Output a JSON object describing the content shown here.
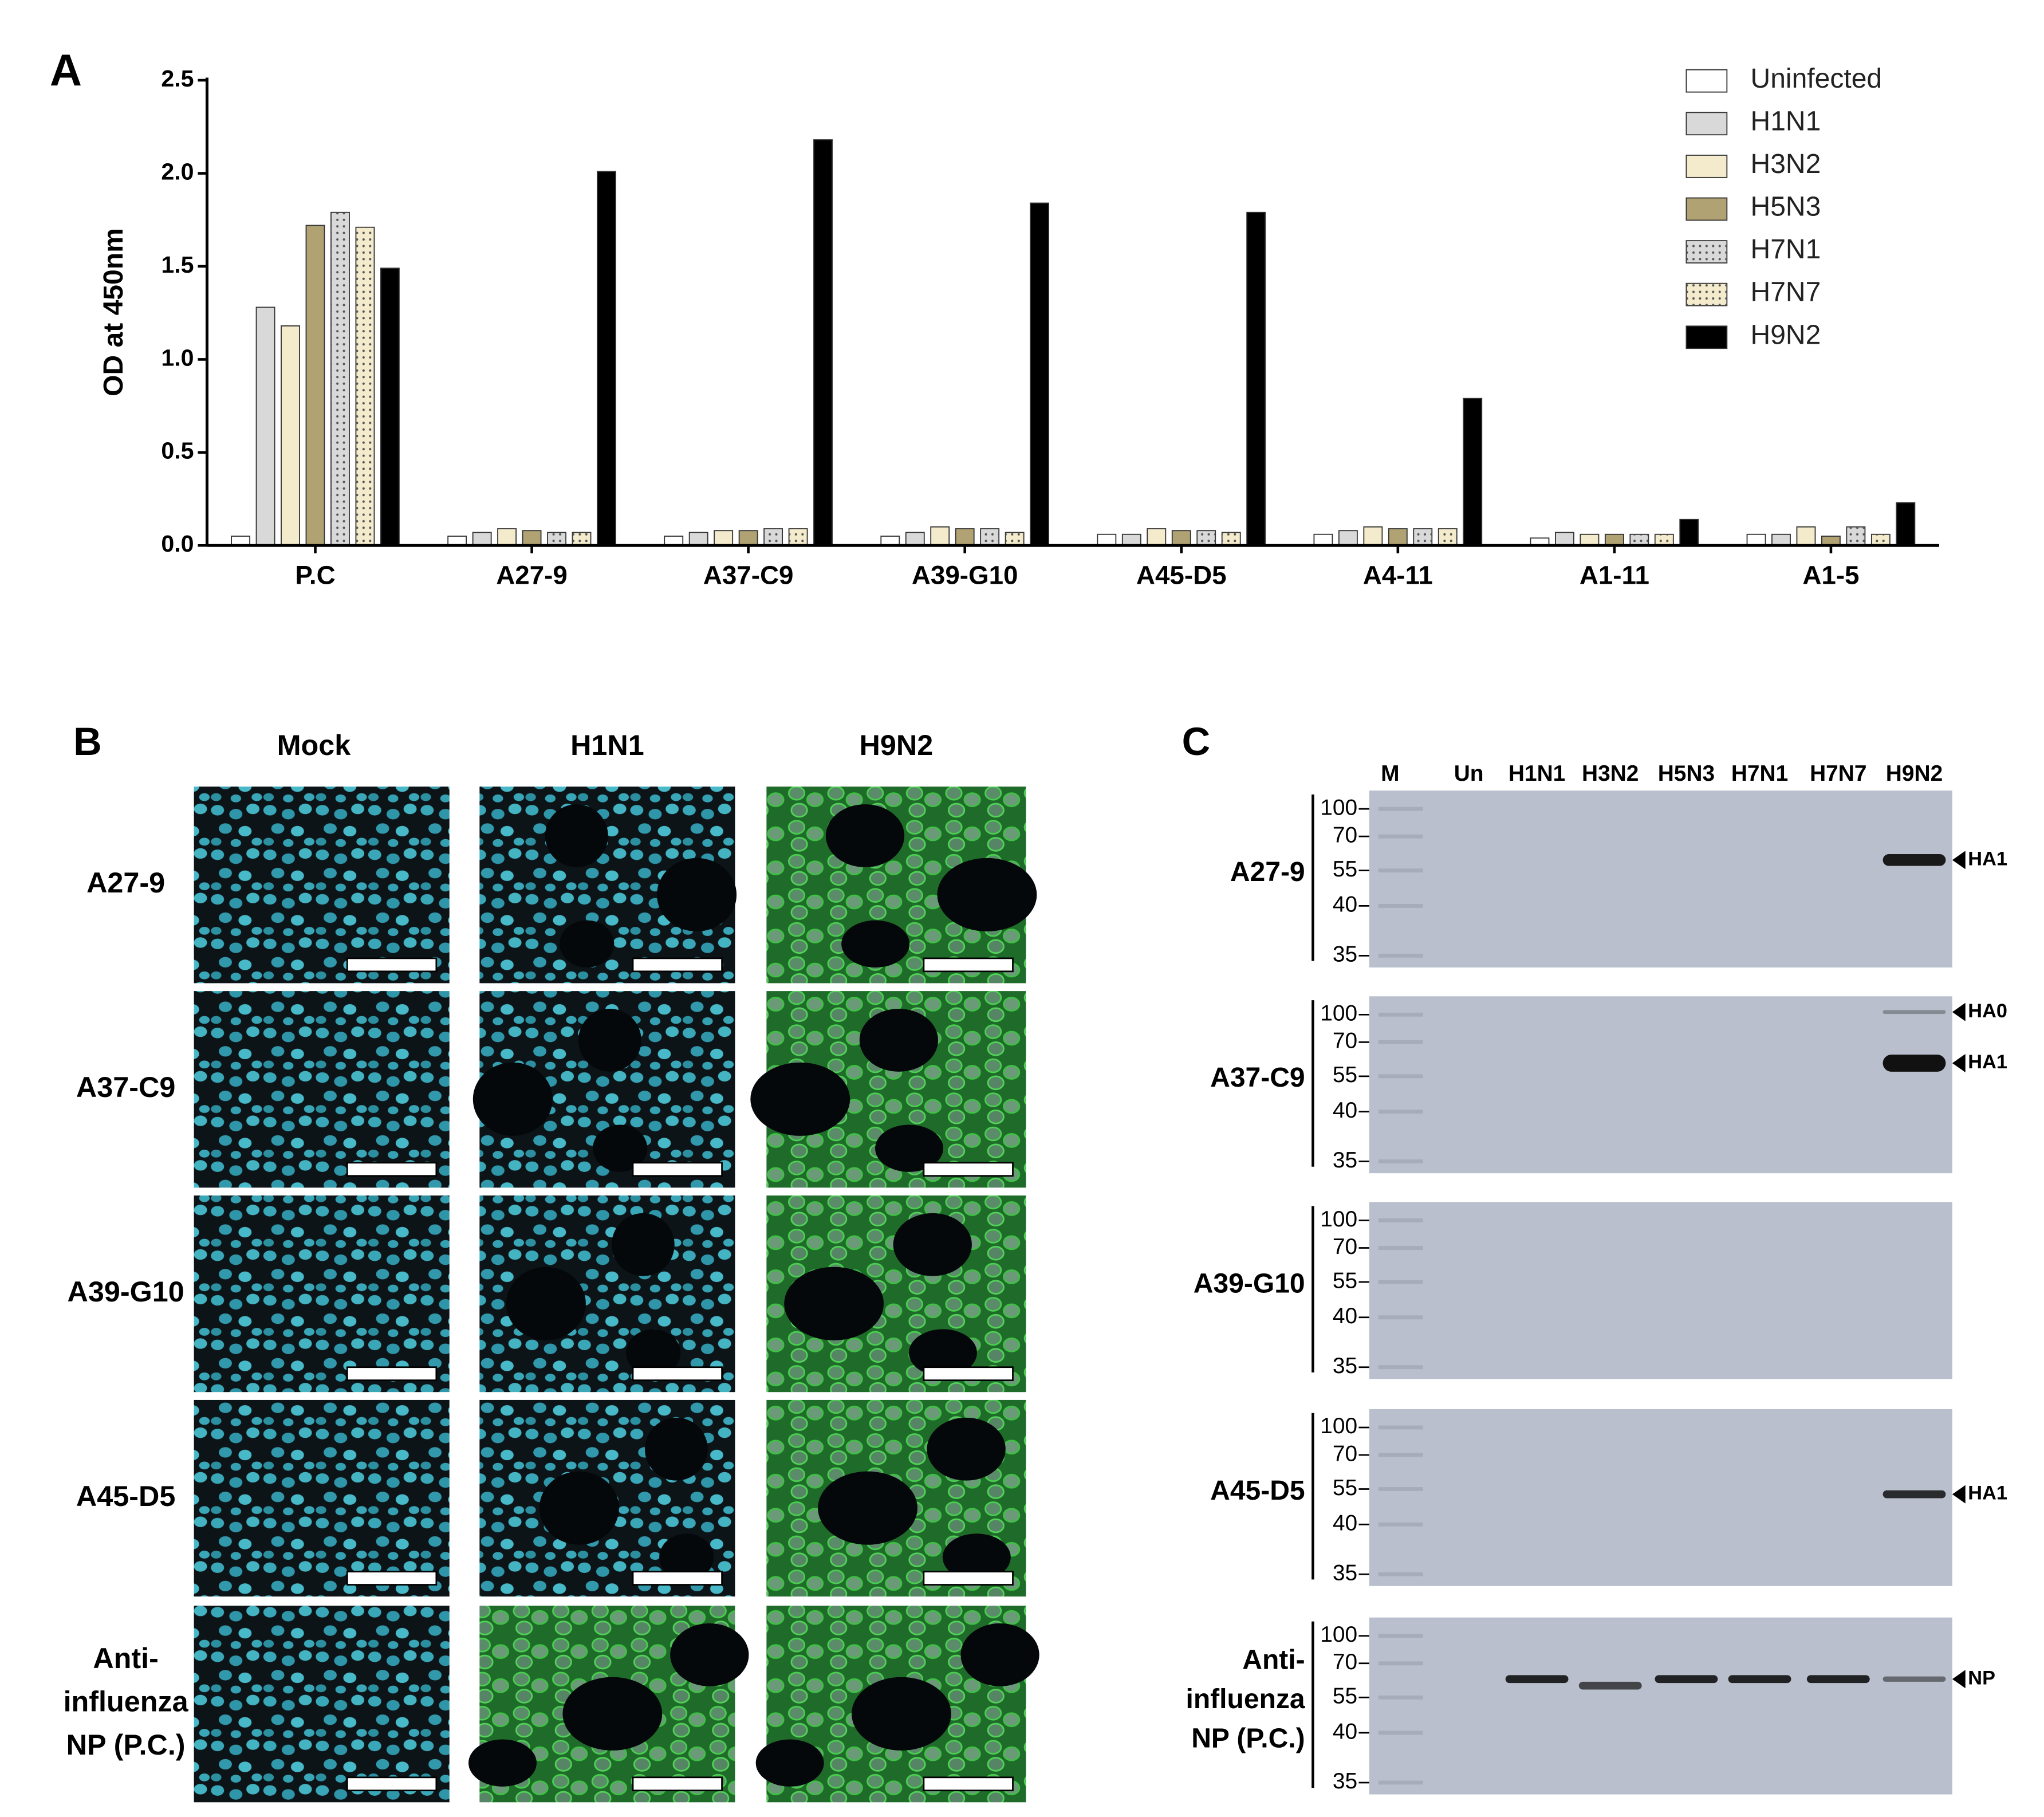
{
  "chart_data": {
    "type": "bar",
    "panel": "A",
    "ylabel": "OD at 450nm",
    "categories": [
      "P.C",
      "A27-9",
      "A37-C9",
      "A39-G10",
      "A45-D5",
      "A4-11",
      "A1-11",
      "A1-5"
    ],
    "series": [
      {
        "name": "Uninfected",
        "color": "#ffffff",
        "values": [
          0.05,
          0.05,
          0.05,
          0.05,
          0.06,
          0.06,
          0.04,
          0.06
        ]
      },
      {
        "name": "H1N1",
        "color": "#d9d9d9",
        "values": [
          1.28,
          0.07,
          0.07,
          0.07,
          0.06,
          0.08,
          0.07,
          0.06
        ]
      },
      {
        "name": "H3N2",
        "color": "#f3ebcb",
        "values": [
          1.18,
          0.09,
          0.08,
          0.1,
          0.09,
          0.1,
          0.06,
          0.1
        ]
      },
      {
        "name": "H5N3",
        "color": "#b0a272",
        "values": [
          1.72,
          0.08,
          0.08,
          0.09,
          0.08,
          0.09,
          0.06,
          0.05
        ]
      },
      {
        "name": "H7N1",
        "color": "#d9d9d9",
        "pattern": "dots",
        "values": [
          1.79,
          0.07,
          0.09,
          0.09,
          0.08,
          0.09,
          0.06,
          0.1
        ]
      },
      {
        "name": "H7N7",
        "color": "#f3ebcb",
        "pattern": "dots",
        "values": [
          1.71,
          0.07,
          0.09,
          0.07,
          0.07,
          0.09,
          0.06,
          0.06
        ]
      },
      {
        "name": "H9N2",
        "color": "#000000",
        "values": [
          1.49,
          2.01,
          2.18,
          1.84,
          1.79,
          0.79,
          0.14,
          0.23
        ]
      }
    ],
    "ylim": [
      0,
      2.5
    ],
    "yticks": [
      {
        "value": 0,
        "label": "0.0"
      },
      0.5,
      {
        "value": 1,
        "label": "1.0"
      },
      1.5,
      {
        "value": 2,
        "label": "2.0"
      },
      2.5
    ],
    "legend": "top-right"
  },
  "panel_b": {
    "label": "B",
    "columns": [
      "Mock",
      "H1N1",
      "H9N2"
    ],
    "rows": [
      "A27-9",
      "A37-C9",
      "A39-G10",
      "A45-D5",
      [
        "Anti-",
        "influenza",
        "NP (P.C.)"
      ]
    ]
  },
  "panel_c": {
    "label": "C",
    "lanes": [
      "M",
      "Un",
      "H1N1",
      "H3N2",
      "H5N3",
      "H7N1",
      "H7N7",
      "H9N2"
    ],
    "blots": [
      {
        "label": "A27-9",
        "markers": [
          100,
          70,
          55,
          40,
          35
        ],
        "bands": [
          "HA1"
        ]
      },
      {
        "label": "A37-C9",
        "markers": [
          100,
          70,
          55,
          40,
          35
        ],
        "bands": [
          "HA0",
          "HA1"
        ]
      },
      {
        "label": "A39-G10",
        "markers": [
          100,
          70,
          55,
          40,
          35
        ]
      },
      {
        "label": "A45-D5",
        "markers": [
          100,
          70,
          55,
          40,
          35
        ],
        "bands": [
          "HA1"
        ]
      },
      {
        "label": [
          "Anti-",
          "influenza",
          "NP (P.C.)"
        ],
        "markers": [
          100,
          70,
          55,
          40,
          35
        ],
        "bands": [
          "NP"
        ]
      }
    ]
  }
}
